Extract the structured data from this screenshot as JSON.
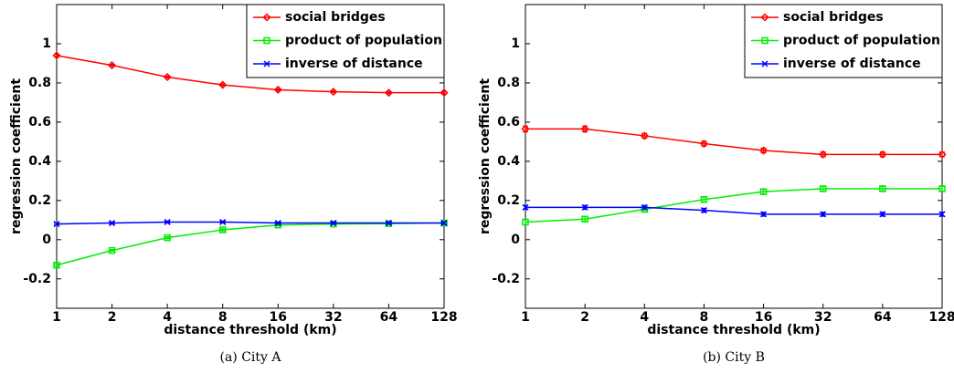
{
  "chart_data": [
    {
      "type": "line",
      "caption": "(a) City A",
      "xlabel": "distance threshold (km)",
      "ylabel": "regression coefficient",
      "x": [
        1,
        2,
        4,
        8,
        16,
        32,
        64,
        128
      ],
      "xscale": "log",
      "xlim": [
        1,
        128
      ],
      "xticks": [
        1,
        2,
        4,
        8,
        16,
        32,
        64,
        128
      ],
      "ylim": [
        -0.35,
        1.2
      ],
      "yticks": [
        -0.2,
        0,
        0.2,
        0.4,
        0.6,
        0.8,
        1
      ],
      "legend": "top-right",
      "series": [
        {
          "name": "social bridges",
          "color": "#ff0000",
          "marker": "diamond",
          "values": [
            0.94,
            0.89,
            0.83,
            0.79,
            0.765,
            0.755,
            0.75,
            0.75
          ],
          "errors": [
            0.005,
            0.005,
            0.005,
            0.005,
            0.005,
            0.005,
            0.005,
            0.005
          ]
        },
        {
          "name": "product of population",
          "color": "#00ee00",
          "marker": "square",
          "values": [
            -0.13,
            -0.055,
            0.01,
            0.05,
            0.075,
            0.08,
            0.082,
            0.085
          ],
          "errors": [
            0.005,
            0.005,
            0.005,
            0.005,
            0.005,
            0.005,
            0.005,
            0.005
          ]
        },
        {
          "name": "inverse of distance",
          "color": "#0000ff",
          "marker": "x",
          "values": [
            0.08,
            0.085,
            0.09,
            0.09,
            0.085,
            0.085,
            0.085,
            0.085
          ],
          "errors": [
            0.005,
            0.005,
            0.005,
            0.005,
            0.005,
            0.005,
            0.005,
            0.005
          ]
        }
      ]
    },
    {
      "type": "line",
      "caption": "(b) City B",
      "xlabel": "distance threshold (km)",
      "ylabel": "regression coefficient",
      "x": [
        1,
        2,
        4,
        8,
        16,
        32,
        64,
        128
      ],
      "xscale": "log",
      "xlim": [
        1,
        128
      ],
      "xticks": [
        1,
        2,
        4,
        8,
        16,
        32,
        64,
        128
      ],
      "ylim": [
        -0.35,
        1.2
      ],
      "yticks": [
        -0.2,
        0,
        0.2,
        0.4,
        0.6,
        0.8,
        1
      ],
      "legend": "top-right",
      "series": [
        {
          "name": "social bridges",
          "color": "#ff0000",
          "marker": "diamond",
          "values": [
            0.565,
            0.565,
            0.53,
            0.49,
            0.455,
            0.435,
            0.435,
            0.435
          ],
          "errors": [
            0.015,
            0.015,
            0.012,
            0.012,
            0.012,
            0.012,
            0.012,
            0.012
          ]
        },
        {
          "name": "product of population",
          "color": "#00ee00",
          "marker": "square",
          "values": [
            0.09,
            0.105,
            0.155,
            0.205,
            0.245,
            0.26,
            0.26,
            0.26
          ],
          "errors": [
            0.012,
            0.012,
            0.012,
            0.012,
            0.012,
            0.012,
            0.012,
            0.012
          ]
        },
        {
          "name": "inverse of distance",
          "color": "#0000ff",
          "marker": "x",
          "values": [
            0.165,
            0.165,
            0.165,
            0.15,
            0.13,
            0.13,
            0.13,
            0.13
          ],
          "errors": [
            0.01,
            0.01,
            0.01,
            0.01,
            0.01,
            0.01,
            0.01,
            0.01
          ]
        }
      ]
    }
  ]
}
